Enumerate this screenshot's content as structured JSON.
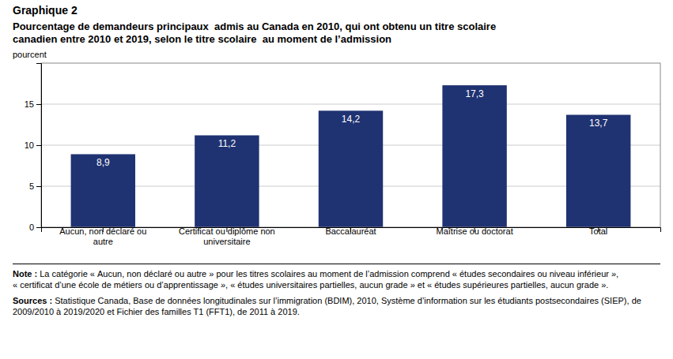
{
  "chart_data": {
    "type": "bar",
    "title": "Graphique 2",
    "subtitle": "Pourcentage de demandeurs principaux  admis au Canada en 2010, qui ont obtenu un titre scolaire\ncanadien entre 2010 et 2019, selon le titre scolaire  au moment de l’admission",
    "y_label": "pourcent",
    "categories": [
      "Aucun, non déclaré ou\nautre",
      "Certificat ou diplôme non\nuniversitaire",
      "Baccalauréat",
      "Maîtrise ou doctorat",
      "Total"
    ],
    "values": [
      8.9,
      11.2,
      14.2,
      17.3,
      13.7
    ],
    "value_labels": [
      "8,9",
      "11,2",
      "14,2",
      "17,3",
      "13,7"
    ],
    "data_labels": true,
    "color": "#1F3272",
    "ylim": [
      0,
      20
    ],
    "yticks": [
      0,
      5,
      10,
      15
    ],
    "grid": true,
    "notes": [
      {
        "label": "Note :",
        "text": "La catégorie « Aucun, non déclaré ou autre » pour les titres scolaires au moment de l’admission comprend « études secondaires ou niveau inférieur », « certificat d’une école de métiers ou d’apprentissage », « études universitaires partielles, aucun grade » et « études supérieures partielles, aucun grade »."
      },
      {
        "label": "Sources :",
        "text": "Statistique Canada, Base de données longitudinales sur l’immigration (BDIM), 2010, Système d’information sur les étudiants postsecondaires (SIEP), de 2009/2010 à 2019/2020 et Fichier des familles T1 (FFT1), de 2011 à 2019."
      }
    ]
  }
}
